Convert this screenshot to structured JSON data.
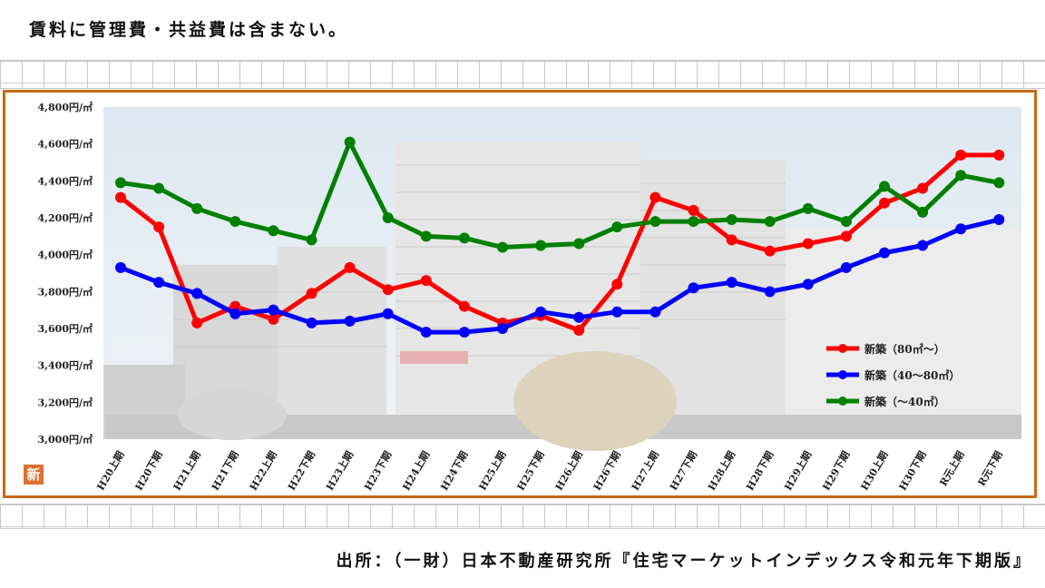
{
  "header": {
    "note": "賃料に管理費・共益費は含まない。"
  },
  "footer": {
    "source": "出所：（一財）日本不動産研究所『住宅マーケットインデックス令和元年下期版』"
  },
  "badge": {
    "text": "新"
  },
  "colors": {
    "frame": "#c86a14",
    "red": "#ff0000",
    "blue": "#0000ff",
    "green": "#008000"
  },
  "chart_data": {
    "type": "line",
    "title": "",
    "xlabel": "",
    "ylabel": "",
    "ylim": [
      3000,
      4800
    ],
    "y_ticks": [
      3000,
      3200,
      3400,
      3600,
      3800,
      4000,
      4200,
      4400,
      4600,
      4800
    ],
    "y_tick_labels": [
      "3,000円/㎡",
      "3,200円/㎡",
      "3,400円/㎡",
      "3,600円/㎡",
      "3,800円/㎡",
      "4,000円/㎡",
      "4,200円/㎡",
      "4,400円/㎡",
      "4,600円/㎡",
      "4,800円/㎡"
    ],
    "legend_position": "bottom-right",
    "grid": false,
    "categories": [
      "H20上期",
      "H20下期",
      "H21上期",
      "H21下期",
      "H22上期",
      "H22下期",
      "H23上期",
      "H23下期",
      "H24上期",
      "H24下期",
      "H25上期",
      "H25下期",
      "H26上期",
      "H26下期",
      "H27上期",
      "H27下期",
      "H28上期",
      "H28下期",
      "H29上期",
      "H29下期",
      "H30上期",
      "H30下期",
      "R元上期",
      "R元下期"
    ],
    "series": [
      {
        "name": "新築（80㎡～）",
        "color": "#ff0000",
        "values": [
          4310,
          4150,
          3630,
          3720,
          3650,
          3790,
          3930,
          3810,
          3860,
          3720,
          3630,
          3670,
          3590,
          3840,
          4310,
          4240,
          4080,
          4020,
          4060,
          4100,
          4280,
          4360,
          4540,
          4540
        ]
      },
      {
        "name": "新築（40～80㎡）",
        "color": "#0000ff",
        "values": [
          3930,
          3850,
          3790,
          3680,
          3700,
          3630,
          3640,
          3680,
          3580,
          3580,
          3600,
          3690,
          3660,
          3690,
          3690,
          3820,
          3850,
          3800,
          3840,
          3930,
          4010,
          4050,
          4140,
          4190
        ]
      },
      {
        "name": "新築（～40㎡）",
        "color": "#008000",
        "values": [
          4390,
          4360,
          4250,
          4180,
          4130,
          4080,
          4610,
          4200,
          4100,
          4090,
          4040,
          4050,
          4060,
          4150,
          4180,
          4180,
          4190,
          4180,
          4250,
          4180,
          4370,
          4230,
          4430,
          4390
        ]
      }
    ]
  }
}
